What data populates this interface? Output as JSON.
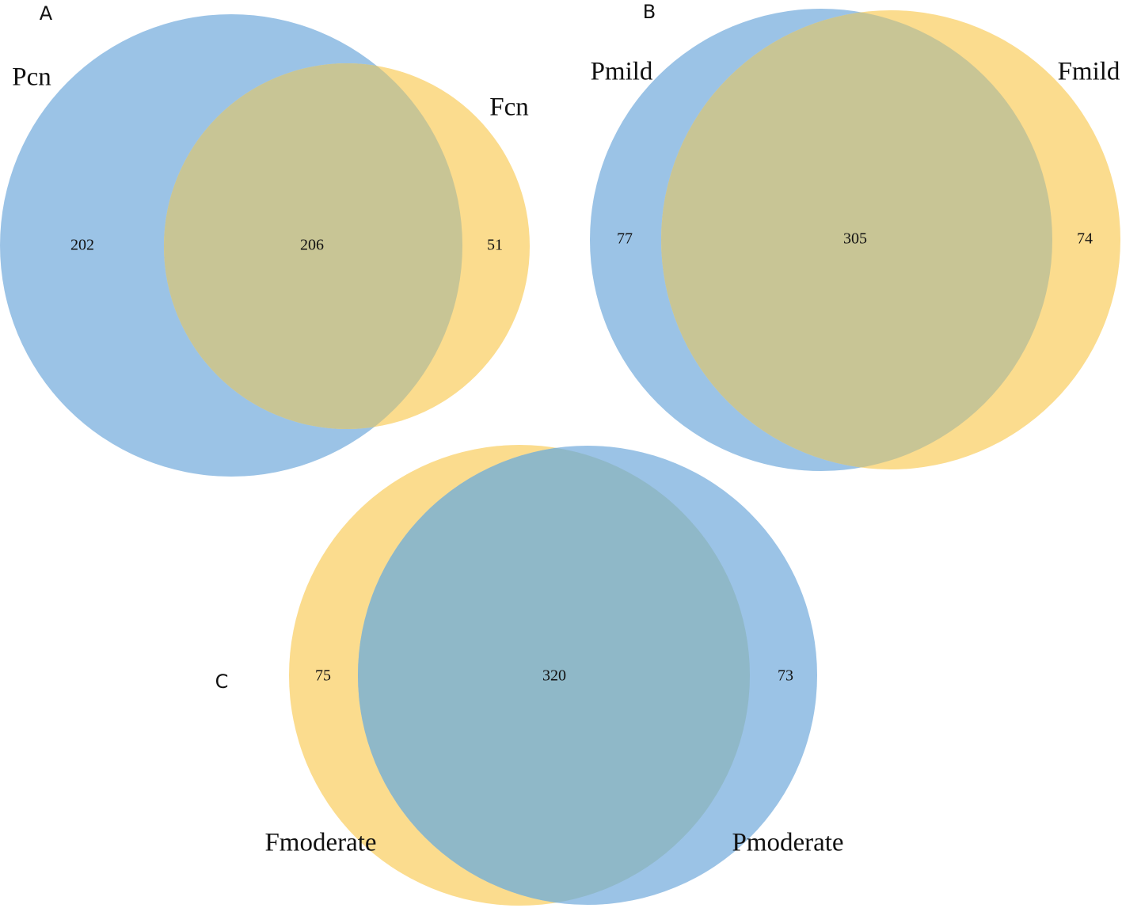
{
  "panels": [
    {
      "letter": "A",
      "sets": [
        "Pcn",
        "Fcn"
      ],
      "counts": [
        202,
        206,
        51
      ]
    },
    {
      "letter": "B",
      "sets": [
        "Pmild",
        "Fmild"
      ],
      "counts": [
        77,
        305,
        74
      ]
    },
    {
      "letter": "C",
      "sets": [
        "Fmoderate",
        "Pmoderate"
      ],
      "counts": [
        75,
        320,
        73
      ]
    }
  ]
}
